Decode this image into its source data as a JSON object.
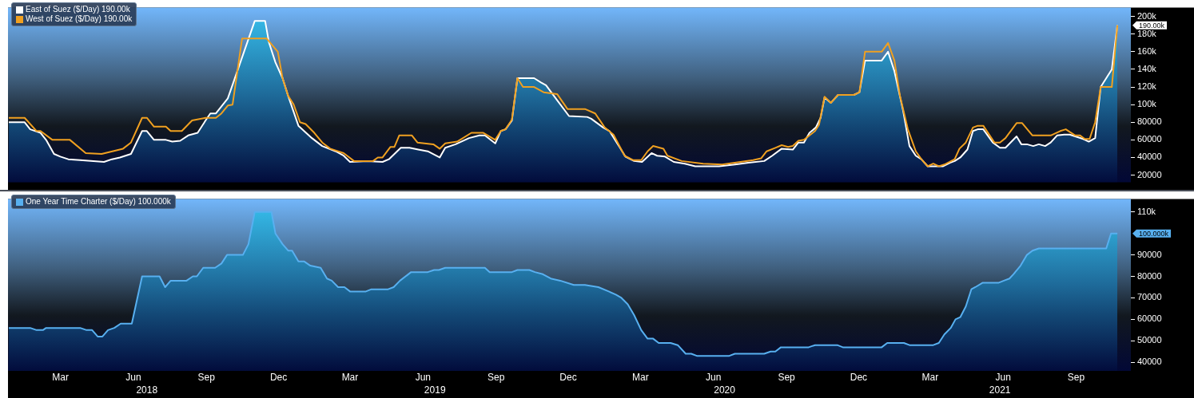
{
  "chart_data": [
    {
      "type": "line",
      "xlim": [
        "2018-01-08",
        "2021-11-23"
      ],
      "ylim": [
        12000,
        210000
      ],
      "yticks": [
        20000,
        40000,
        60000,
        80000,
        {
          "value": 100000,
          "label": "100k"
        },
        {
          "value": 120000,
          "label": "120k"
        },
        {
          "value": 140000,
          "label": "140k"
        },
        {
          "value": 160000,
          "label": "160k"
        },
        {
          "value": 180000,
          "label": "180k"
        },
        {
          "value": 200000,
          "label": "200k"
        }
      ],
      "tick_labels": "y",
      "legend": "top left",
      "series": [
        {
          "name": "East of Suez ($/Day) 190.00k",
          "type": "area",
          "color": "#ffffff",
          "x": [
            "2018-01-09",
            "2018-01-29",
            "2018-02-05",
            "2018-02-18",
            "2018-02-25",
            "2018-03-07",
            "2018-03-15",
            "2018-03-25",
            "2018-04-09",
            "2018-05-09",
            "2018-05-19",
            "2018-05-29",
            "2018-06-12",
            "2018-06-26",
            "2018-07-02",
            "2018-07-11",
            "2018-07-26",
            "2018-08-03",
            "2018-08-13",
            "2018-08-23",
            "2018-09-04",
            "2018-09-14",
            "2018-09-20",
            "2018-09-27",
            "2018-10-12",
            "2018-10-17",
            "2018-11-15",
            "2018-11-28",
            "2018-12-03",
            "2018-12-11",
            "2018-12-20",
            "2018-12-27",
            "2019-01-09",
            "2019-01-26",
            "2019-02-08",
            "2019-02-25",
            "2019-03-07",
            "2019-03-15",
            "2019-04-06",
            "2019-04-25",
            "2019-05-03",
            "2019-05-18",
            "2019-05-29",
            "2019-06-09",
            "2019-06-21",
            "2019-07-06",
            "2019-07-13",
            "2019-07-26",
            "2019-08-12",
            "2019-08-25",
            "2019-09-01",
            "2019-09-14",
            "2019-09-21",
            "2019-09-27",
            "2019-10-05",
            "2019-10-12",
            "2019-11-02",
            "2019-11-11",
            "2019-11-17",
            "2019-12-01",
            "2019-12-16",
            "2020-01-08",
            "2020-01-13",
            "2020-01-28",
            "2020-02-05",
            "2020-02-19",
            "2020-02-25",
            "2020-03-07",
            "2020-03-17",
            "2020-03-29",
            "2020-04-05",
            "2020-04-15",
            "2020-04-26",
            "2020-05-10",
            "2020-05-23",
            "2020-06-22",
            "2020-07-12",
            "2020-07-29",
            "2020-08-18",
            "2020-08-28",
            "2020-09-09",
            "2020-09-23",
            "2020-09-30",
            "2020-10-07",
            "2020-10-14",
            "2020-10-22",
            "2020-10-28",
            "2020-11-02",
            "2020-11-10",
            "2020-11-19",
            "2020-12-09",
            "2020-12-16",
            "2020-12-23",
            "2021-01-13",
            "2021-01-21",
            "2021-01-29",
            "2021-02-09",
            "2021-02-17",
            "2021-02-25",
            "2021-03-04",
            "2021-03-12",
            "2021-03-31",
            "2021-04-09",
            "2021-04-15",
            "2021-04-22",
            "2021-05-01",
            "2021-05-08",
            "2021-05-14",
            "2021-05-21",
            "2021-06-02",
            "2021-06-11",
            "2021-06-18",
            "2021-07-02",
            "2021-07-08",
            "2021-07-15",
            "2021-07-23",
            "2021-07-30",
            "2021-08-07",
            "2021-08-14",
            "2021-08-22",
            "2021-08-31",
            "2021-09-07",
            "2021-09-24",
            "2021-10-01",
            "2021-10-09",
            "2021-10-16",
            "2021-10-30",
            "2021-11-06"
          ],
          "values": [
            80000,
            80000,
            72000,
            68000,
            60000,
            44000,
            41000,
            38000,
            37000,
            35000,
            38000,
            40000,
            44000,
            70000,
            70000,
            60000,
            60000,
            58000,
            59000,
            65000,
            68000,
            82000,
            90000,
            90000,
            107000,
            120000,
            195000,
            195000,
            170000,
            148000,
            130000,
            110000,
            76000,
            62000,
            53000,
            47000,
            42000,
            35000,
            36000,
            35000,
            38000,
            51000,
            51000,
            49000,
            47000,
            40000,
            51000,
            55000,
            62000,
            65000,
            65000,
            56000,
            70000,
            72000,
            82000,
            130000,
            130000,
            125000,
            122000,
            105000,
            87000,
            86000,
            84000,
            74000,
            70000,
            50000,
            41000,
            36000,
            35000,
            45000,
            42000,
            41000,
            35000,
            33000,
            30000,
            30000,
            32000,
            34000,
            36000,
            42000,
            50000,
            49000,
            57000,
            57000,
            68000,
            74000,
            85000,
            108000,
            102000,
            111000,
            111000,
            114000,
            150000,
            150000,
            160000,
            138000,
            93000,
            53000,
            42000,
            38000,
            30000,
            30000,
            34000,
            36000,
            40000,
            49000,
            70000,
            72000,
            72000,
            57000,
            51000,
            51000,
            64000,
            55000,
            55000,
            53000,
            55000,
            53000,
            57000,
            65000,
            66000,
            66000,
            61000,
            58000,
            62000,
            120000,
            140000,
            190000
          ]
        },
        {
          "name": "West of Suez ($/Day) 190.00k",
          "color": "#f0a020",
          "x": [
            "2018-01-09",
            "2018-01-29",
            "2018-02-13",
            "2018-02-18",
            "2018-03-05",
            "2018-03-27",
            "2018-04-16",
            "2018-05-06",
            "2018-06-02",
            "2018-06-12",
            "2018-06-26",
            "2018-07-02",
            "2018-07-11",
            "2018-07-26",
            "2018-08-01",
            "2018-08-15",
            "2018-08-28",
            "2018-09-14",
            "2018-09-27",
            "2018-10-04",
            "2018-10-12",
            "2018-10-18",
            "2018-10-30",
            "2018-11-30",
            "2018-12-14",
            "2018-12-20",
            "2018-12-27",
            "2019-01-03",
            "2019-01-11",
            "2019-01-18",
            "2019-01-29",
            "2019-02-08",
            "2019-02-18",
            "2019-03-07",
            "2019-03-20",
            "2019-04-13",
            "2019-04-19",
            "2019-04-25",
            "2019-05-05",
            "2019-05-10",
            "2019-05-16",
            "2019-06-01",
            "2019-06-08",
            "2019-06-28",
            "2019-07-06",
            "2019-07-13",
            "2019-07-28",
            "2019-08-15",
            "2019-08-30",
            "2019-09-14",
            "2019-09-21",
            "2019-09-27",
            "2019-10-05",
            "2019-10-12",
            "2019-10-19",
            "2019-11-02",
            "2019-11-14",
            "2019-12-01",
            "2019-12-14",
            "2020-01-05",
            "2020-01-18",
            "2020-01-30",
            "2020-02-10",
            "2020-02-24",
            "2020-03-06",
            "2020-03-16",
            "2020-03-24",
            "2020-03-31",
            "2020-04-13",
            "2020-04-18",
            "2020-05-06",
            "2020-06-02",
            "2020-06-26",
            "2020-07-19",
            "2020-08-04",
            "2020-08-14",
            "2020-08-21",
            "2020-09-01",
            "2020-09-09",
            "2020-09-17",
            "2020-09-23",
            "2020-09-30",
            "2020-10-07",
            "2020-10-14",
            "2020-10-21",
            "2020-10-26",
            "2020-11-02",
            "2020-11-10",
            "2020-11-19",
            "2020-12-09",
            "2020-12-16",
            "2020-12-23",
            "2021-01-13",
            "2021-01-21",
            "2021-01-29",
            "2021-02-05",
            "2021-02-15",
            "2021-02-25",
            "2021-03-04",
            "2021-03-12",
            "2021-03-19",
            "2021-03-26",
            "2021-04-02",
            "2021-04-15",
            "2021-04-21",
            "2021-04-29",
            "2021-05-08",
            "2021-05-14",
            "2021-05-21",
            "2021-06-04",
            "2021-06-11",
            "2021-06-18",
            "2021-07-02",
            "2021-07-09",
            "2021-07-22",
            "2021-08-14",
            "2021-08-26",
            "2021-09-02",
            "2021-09-07",
            "2021-09-14",
            "2021-09-20",
            "2021-09-26",
            "2021-10-02",
            "2021-10-09",
            "2021-10-16",
            "2021-10-30",
            "2021-11-06"
          ],
          "values": [
            85000,
            85000,
            70000,
            70000,
            60000,
            60000,
            45000,
            44000,
            50000,
            57000,
            85000,
            85000,
            75000,
            75000,
            70000,
            70000,
            82000,
            85000,
            85000,
            90000,
            99000,
            100000,
            175000,
            175000,
            160000,
            130000,
            110000,
            100000,
            80000,
            78000,
            68000,
            57000,
            50000,
            45000,
            36000,
            36000,
            40000,
            40000,
            52000,
            52000,
            65000,
            65000,
            57000,
            55000,
            50000,
            56000,
            58000,
            68000,
            68000,
            60000,
            70000,
            72000,
            83000,
            130000,
            120000,
            120000,
            114000,
            112000,
            95000,
            95000,
            90000,
            74000,
            66000,
            42000,
            37000,
            37000,
            47000,
            53000,
            50000,
            42000,
            36000,
            33000,
            32000,
            35000,
            37000,
            39000,
            47000,
            51000,
            54000,
            52000,
            53000,
            59000,
            60000,
            65000,
            70000,
            77000,
            109000,
            102000,
            111000,
            111000,
            114000,
            160000,
            160000,
            170000,
            150000,
            110000,
            72000,
            47000,
            38000,
            30000,
            33000,
            30000,
            32000,
            38000,
            50000,
            57000,
            74000,
            76000,
            76000,
            57000,
            57000,
            62000,
            79000,
            79000,
            65000,
            65000,
            70000,
            72000,
            69000,
            65000,
            65000,
            61000,
            61000,
            80000,
            120000,
            120000,
            190000
          ]
        }
      ],
      "annotations": [
        {
          "text": "190.00k",
          "x": "2021-11-06",
          "y": 190000
        }
      ]
    },
    {
      "type": "area",
      "xlim": [
        "2018-01-08",
        "2021-11-23"
      ],
      "ylim": [
        36000,
        116000
      ],
      "yticks": [
        40000,
        50000,
        60000,
        70000,
        80000,
        90000,
        {
          "value": 110000,
          "label": "110k"
        }
      ],
      "xticks": [
        {
          "value": "2018-03-15",
          "label": "Mar"
        },
        {
          "value": "2018-06-15",
          "label": "Jun"
        },
        {
          "value": "2018-09-15",
          "label": "Sep"
        },
        {
          "value": "2018-12-15",
          "label": "Dec"
        },
        {
          "value": "2019-03-15",
          "label": "Mar"
        },
        {
          "value": "2019-06-15",
          "label": "Jun"
        },
        {
          "value": "2019-09-15",
          "label": "Sep"
        },
        {
          "value": "2019-12-15",
          "label": "Dec"
        },
        {
          "value": "2020-03-15",
          "label": "Mar"
        },
        {
          "value": "2020-06-15",
          "label": "Jun"
        },
        {
          "value": "2020-09-15",
          "label": "Sep"
        },
        {
          "value": "2020-12-15",
          "label": "Dec"
        },
        {
          "value": "2021-03-15",
          "label": "Mar"
        },
        {
          "value": "2021-06-15",
          "label": "Jun"
        },
        {
          "value": "2021-09-15",
          "label": "Sep"
        }
      ],
      "x2lim": [
        "2018-01-08",
        "2021-11-23"
      ],
      "x2ticks": [
        {
          "value": "2018-07-02",
          "label": "2018"
        },
        {
          "value": "2019-06-30",
          "label": "2019"
        },
        {
          "value": "2020-06-29",
          "label": "2020"
        },
        {
          "value": "2021-06-11",
          "label": "2021"
        }
      ],
      "legend": "top left",
      "series": [
        {
          "name": "One Year Time Charter ($/Day) 100.000k",
          "color": "#58b0f0",
          "x": [
            "2018-01-09",
            "2018-02-05",
            "2018-02-13",
            "2018-02-21",
            "2018-02-25",
            "2018-04-09",
            "2018-04-17",
            "2018-04-24",
            "2018-05-01",
            "2018-05-07",
            "2018-05-14",
            "2018-05-22",
            "2018-05-30",
            "2018-06-13",
            "2018-06-26",
            "2018-07-18",
            "2018-07-25",
            "2018-08-01",
            "2018-08-21",
            "2018-08-29",
            "2018-09-03",
            "2018-09-11",
            "2018-09-26",
            "2018-10-04",
            "2018-10-11",
            "2018-10-31",
            "2018-11-07",
            "2018-11-15",
            "2018-12-06",
            "2018-12-11",
            "2018-12-20",
            "2018-12-27",
            "2019-01-01",
            "2019-01-09",
            "2019-01-16",
            "2019-01-24",
            "2019-02-06",
            "2019-02-14",
            "2019-02-20",
            "2019-02-28",
            "2019-03-08",
            "2019-03-15",
            "2019-04-04",
            "2019-04-11",
            "2019-05-02",
            "2019-05-09",
            "2019-05-17",
            "2019-05-31",
            "2019-06-21",
            "2019-06-29",
            "2019-07-05",
            "2019-07-13",
            "2019-09-01",
            "2019-09-07",
            "2019-10-05",
            "2019-10-12",
            "2019-10-27",
            "2019-11-03",
            "2019-11-13",
            "2019-11-23",
            "2019-12-05",
            "2019-12-22",
            "2020-01-05",
            "2020-01-22",
            "2020-02-04",
            "2020-02-13",
            "2020-02-20",
            "2020-02-28",
            "2020-03-07",
            "2020-03-16",
            "2020-03-24",
            "2020-03-31",
            "2020-04-07",
            "2020-04-22",
            "2020-05-01",
            "2020-05-11",
            "2020-05-18",
            "2020-05-25",
            "2020-07-05",
            "2020-07-12",
            "2020-08-18",
            "2020-08-26",
            "2020-09-01",
            "2020-09-08",
            "2020-10-13",
            "2020-10-21",
            "2020-11-18",
            "2020-11-25",
            "2021-01-13",
            "2021-01-20",
            "2021-02-10",
            "2021-02-17",
            "2021-03-19",
            "2021-03-26",
            "2021-04-02",
            "2021-04-10",
            "2021-04-16",
            "2021-04-22",
            "2021-04-29",
            "2021-05-06",
            "2021-05-11",
            "2021-05-20",
            "2021-06-09",
            "2021-06-16",
            "2021-06-23",
            "2021-06-28",
            "2021-07-07",
            "2021-07-15",
            "2021-07-22",
            "2021-07-30",
            "2021-10-23",
            "2021-10-29",
            "2021-11-06"
          ],
          "values": [
            56000,
            56000,
            55000,
            55000,
            56000,
            56000,
            55000,
            55000,
            52000,
            52000,
            55000,
            56000,
            58000,
            58000,
            80000,
            80000,
            75000,
            78000,
            78000,
            80000,
            80000,
            84000,
            84000,
            86000,
            90000,
            90000,
            95000,
            110000,
            110000,
            100000,
            95000,
            92000,
            92000,
            87000,
            87000,
            85000,
            84000,
            79000,
            78000,
            75000,
            75000,
            73000,
            73000,
            74000,
            74000,
            75000,
            78000,
            82000,
            82000,
            83000,
            83000,
            84000,
            84000,
            82000,
            82000,
            83000,
            83000,
            82000,
            81000,
            79000,
            78000,
            76000,
            76000,
            75000,
            73000,
            71500,
            70000,
            67000,
            62000,
            55000,
            51000,
            51000,
            49000,
            49000,
            48000,
            44000,
            44000,
            43000,
            43000,
            44000,
            44000,
            45000,
            45000,
            47000,
            47000,
            48000,
            48000,
            47000,
            47000,
            49000,
            49000,
            48000,
            48000,
            49000,
            53000,
            56000,
            60000,
            61000,
            66000,
            74000,
            75000,
            77000,
            77000,
            78000,
            79000,
            81000,
            85000,
            90000,
            92000,
            93000,
            93000,
            100000,
            100000
          ]
        }
      ],
      "annotations": [
        {
          "text": "100.000k",
          "x": "2021-11-06",
          "y": 100000
        }
      ]
    }
  ]
}
